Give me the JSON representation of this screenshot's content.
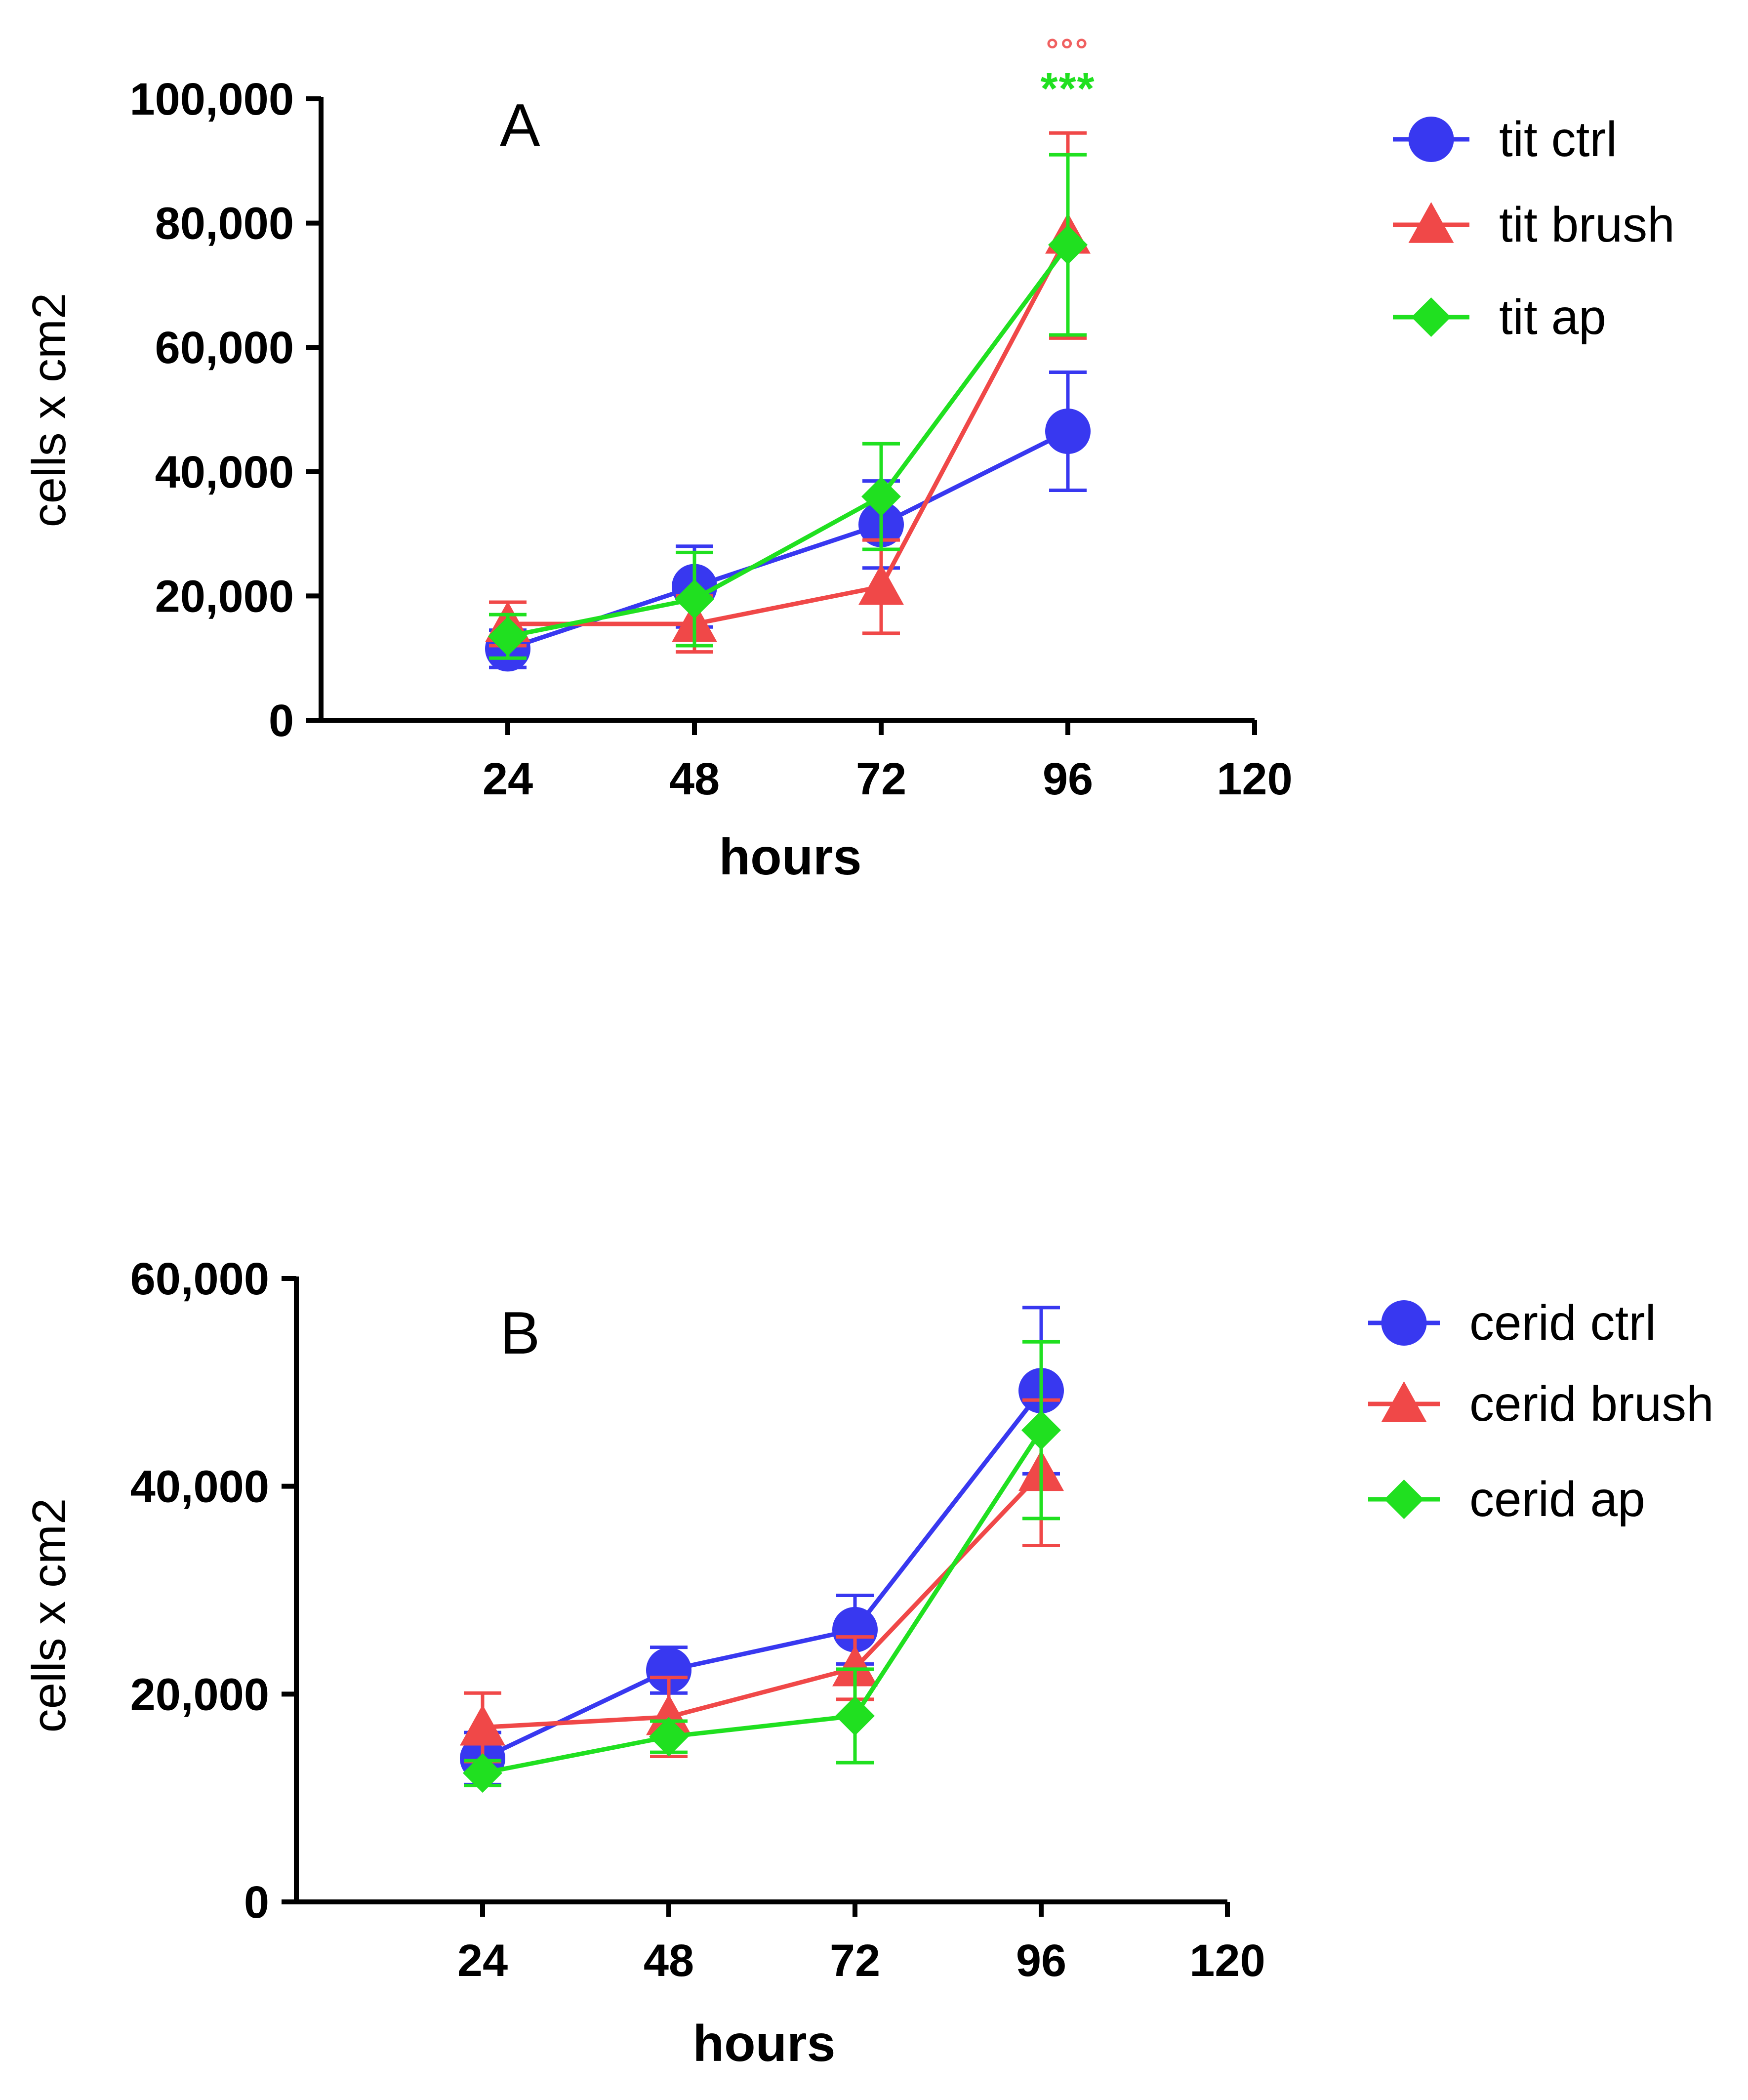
{
  "chart_data": [
    {
      "type": "line",
      "panel_label": "A",
      "xlabel": "hours",
      "ylabel": "cells x cm2",
      "x": [
        24,
        48,
        72,
        96
      ],
      "xlim": [
        0,
        120
      ],
      "xticks": [
        24,
        48,
        72,
        96,
        120
      ],
      "xtick_labels": [
        "24",
        "48",
        "72",
        "96",
        "120"
      ],
      "ylim": [
        0,
        100000
      ],
      "yticks": [
        0,
        20000,
        40000,
        60000,
        80000,
        100000
      ],
      "ytick_labels": [
        "0",
        "20,000",
        "40,000",
        "60,000",
        "80,000",
        "100,000"
      ],
      "legend_position": "top-right",
      "series": [
        {
          "name": "tit ctrl",
          "color": "#3838f0",
          "marker": "circle",
          "values": [
            11500,
            21500,
            31500,
            46500
          ],
          "errors": [
            3000,
            6500,
            7000,
            9500
          ]
        },
        {
          "name": "tit brush",
          "color": "#f04848",
          "marker": "triangle",
          "values": [
            15500,
            15500,
            21500,
            78000
          ],
          "errors": [
            3500,
            4500,
            7500,
            16500
          ]
        },
        {
          "name": "tit ap",
          "color": "#20e020",
          "marker": "diamond",
          "values": [
            13500,
            19500,
            36000,
            76500
          ],
          "errors": [
            3500,
            7500,
            8500,
            14500
          ]
        }
      ],
      "annotations": [
        {
          "text": "°°°",
          "x": 96,
          "color": "#f06060"
        },
        {
          "text": "***",
          "x": 96,
          "color": "#20e020"
        }
      ]
    },
    {
      "type": "line",
      "panel_label": "B",
      "xlabel": "hours",
      "ylabel": "cells x cm2",
      "x": [
        24,
        48,
        72,
        96
      ],
      "xlim": [
        0,
        120
      ],
      "xticks": [
        24,
        48,
        72,
        96,
        120
      ],
      "xtick_labels": [
        "24",
        "48",
        "72",
        "96",
        "120"
      ],
      "ylim": [
        0,
        60000
      ],
      "yticks": [
        0,
        20000,
        40000,
        60000
      ],
      "ytick_labels": [
        "0",
        "20,000",
        "40,000",
        "60,000"
      ],
      "legend_position": "top-right",
      "series": [
        {
          "name": "cerid ctrl",
          "color": "#3838f0",
          "marker": "circle",
          "values": [
            13800,
            22300,
            26200,
            49200
          ],
          "errors": [
            2500,
            2200,
            3300,
            8000
          ]
        },
        {
          "name": "cerid brush",
          "color": "#f04848",
          "marker": "triangle",
          "values": [
            16800,
            17800,
            22500,
            41300
          ],
          "errors": [
            3300,
            3800,
            3000,
            7000
          ]
        },
        {
          "name": "cerid ap",
          "color": "#20e020",
          "marker": "diamond",
          "values": [
            12400,
            15900,
            17900,
            45400
          ],
          "errors": [
            1200,
            1500,
            4500,
            8500
          ]
        }
      ]
    }
  ]
}
